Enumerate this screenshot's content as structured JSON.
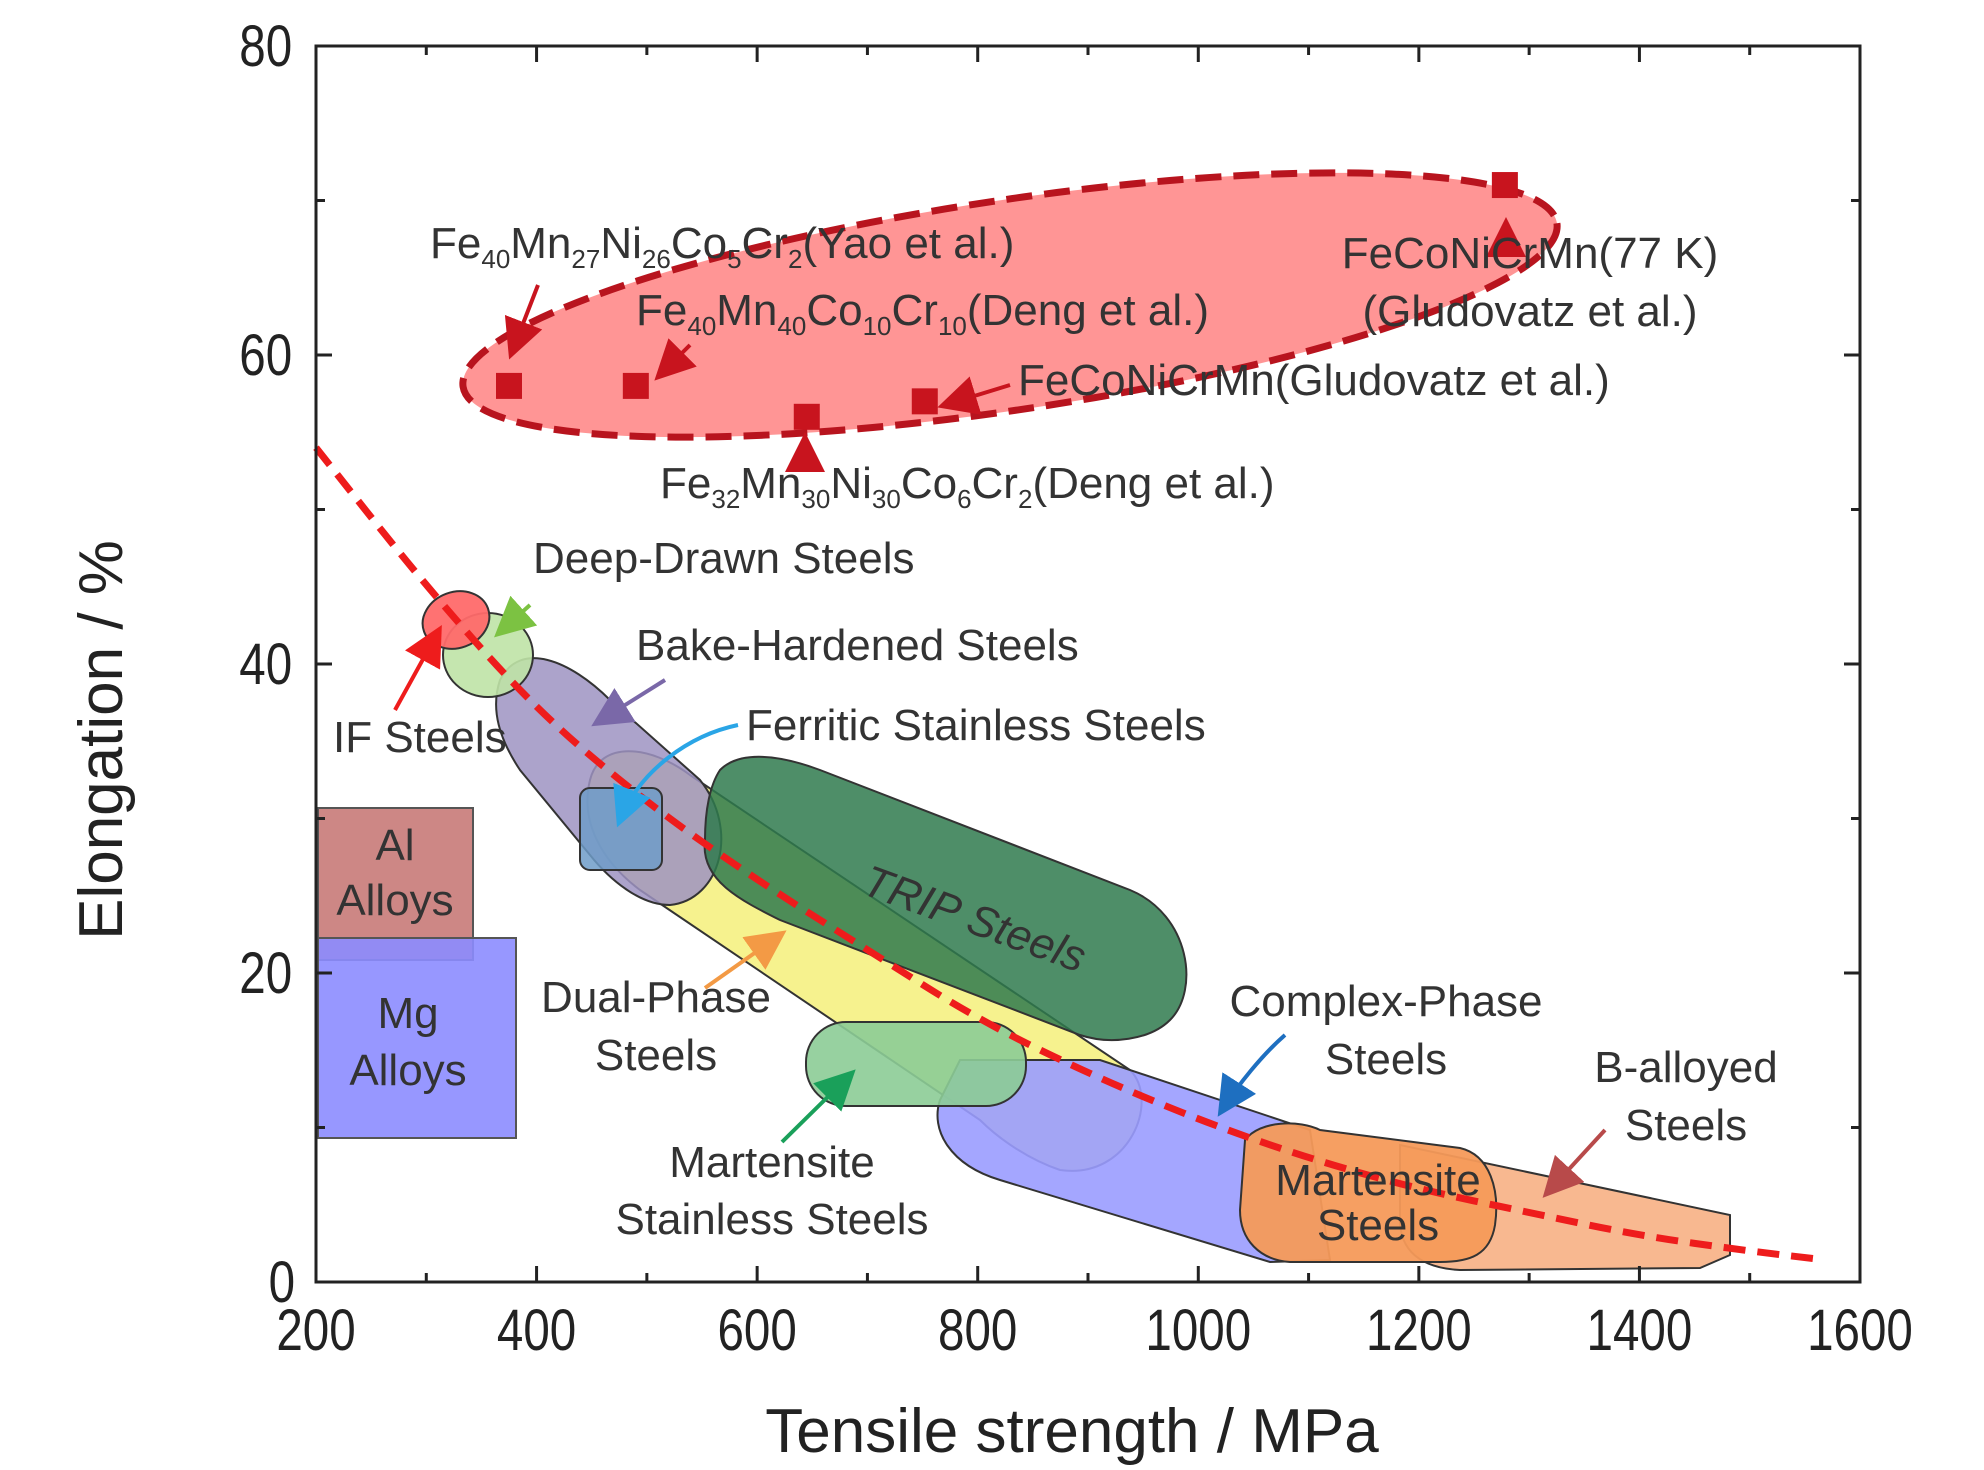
{
  "chart_data": {
    "type": "scatter",
    "xlabel": "Tensile strength / MPa",
    "ylabel": "Elongation / %",
    "xlim": [
      200,
      1600
    ],
    "ylim": [
      0,
      80
    ],
    "x_ticks": [
      "200",
      "400",
      "600",
      "800",
      "1000",
      "1200",
      "1400",
      "1600"
    ],
    "y_ticks": [
      "0",
      "20",
      "40",
      "60",
      "80"
    ],
    "grid": false,
    "colors": {
      "hea_region": "#ff8a8a",
      "trend_line": "#ee1c1c",
      "marker": "#c8141e",
      "al_alloys": "#c87a78",
      "mg_alloys": "#8c8cff",
      "deep_drawn": "#bfe3a6",
      "bake_hardened": "#9d93c2",
      "dual_phase": "#f5f07a",
      "ferritic": "#6f9cc8",
      "trip": "#3e855a",
      "martensite_stainless": "#8ccc96",
      "complex_phase": "#9a9cff",
      "martensite": "#f59a5a",
      "b_alloyed": "#f8b48a",
      "if_steels": "#ff6a6a"
    },
    "alloy_points": [
      {
        "label_parts": [
          "Fe",
          "40",
          "Mn",
          "27",
          "Ni",
          "26",
          "Co",
          "5",
          "Cr",
          "2",
          "(Yao et al.)"
        ],
        "x": 375,
        "y": 58
      },
      {
        "label_parts": [
          "Fe",
          "40",
          "Mn",
          "40",
          "Co",
          "10",
          "Cr",
          "10",
          "(Deng et al.)"
        ],
        "x": 490,
        "y": 58
      },
      {
        "label_parts": [
          "Fe",
          "32",
          "Mn",
          "30",
          "Ni",
          "30",
          "Co",
          "6",
          "Cr",
          "2",
          "(Deng et al.)"
        ],
        "x": 645,
        "y": 56
      },
      {
        "label_parts": [
          "FeCoNiCrMn(Gludovatz et al.)"
        ],
        "x": 752,
        "y": 57
      },
      {
        "label_lines": [
          "FeCoNiCrMn(77 K)",
          "(Gludovatz et al.)"
        ],
        "x": 1278,
        "y": 71
      }
    ],
    "regions": [
      {
        "id": "al",
        "label_lines": [
          "Al",
          "Alloys"
        ]
      },
      {
        "id": "mg",
        "label_lines": [
          "Mg",
          "Alloys"
        ]
      },
      {
        "id": "if",
        "label_lines": [
          "IF Steels"
        ]
      },
      {
        "id": "deep",
        "label_lines": [
          "Deep-Drawn Steels"
        ]
      },
      {
        "id": "bake",
        "label_lines": [
          "Bake-Hardened Steels"
        ]
      },
      {
        "id": "ferritic",
        "label_lines": [
          "Ferritic Stainless Steels"
        ]
      },
      {
        "id": "trip",
        "label_lines": [
          "TRIP Steels"
        ]
      },
      {
        "id": "dual",
        "label_lines": [
          "Dual-Phase",
          "Steels"
        ]
      },
      {
        "id": "mart_stainless",
        "label_lines": [
          "Martensite",
          "Stainless Steels"
        ]
      },
      {
        "id": "complex",
        "label_lines": [
          "Complex-Phase",
          "Steels"
        ]
      },
      {
        "id": "mart",
        "label_lines": [
          "Martensite",
          "Steels"
        ]
      },
      {
        "id": "balloy",
        "label_lines": [
          "B-alloyed",
          "Steels"
        ]
      }
    ],
    "trend_line": {
      "x": [
        200,
        300,
        400,
        500,
        600,
        700,
        800,
        900,
        1000,
        1100,
        1200,
        1300,
        1400,
        1500,
        1560
      ],
      "y": [
        54,
        45,
        37,
        31,
        26,
        21.5,
        17,
        13.5,
        10.5,
        8,
        6,
        4.5,
        3,
        2,
        1.5
      ]
    }
  }
}
